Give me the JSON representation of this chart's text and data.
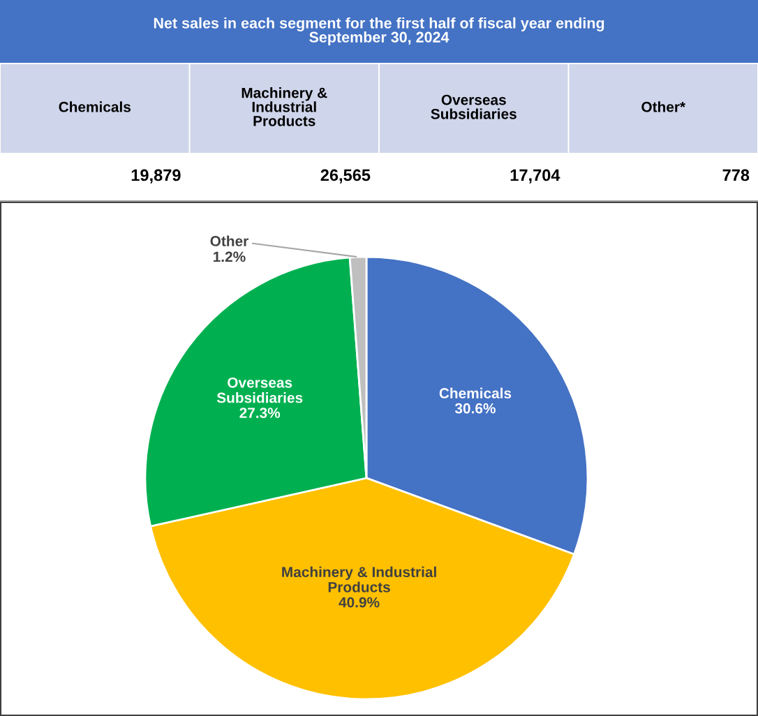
{
  "chart_data": [
    {
      "type": "other",
      "title": "Net sales in each segment for the first half of fiscal year ending September 30, 2024",
      "categories": [
        "Chemicals",
        "Machinery & Industrial Products",
        "Overseas Subsidiaries",
        "Other*"
      ],
      "value_labels": [
        "19,879",
        "26,565",
        "17,704",
        "778"
      ]
    },
    {
      "type": "pie",
      "categories": [
        "Chemicals",
        "Machinery & Industrial Products",
        "Overseas Subsidiaries",
        "Other"
      ],
      "values": [
        30.6,
        40.9,
        27.3,
        1.2
      ],
      "value_labels": [
        "30.6%",
        "40.9%",
        "27.3%",
        "1.2%"
      ],
      "colors": [
        "#4472c4",
        "#ffc000",
        "#00b050",
        "#bfbfbf"
      ]
    }
  ]
}
